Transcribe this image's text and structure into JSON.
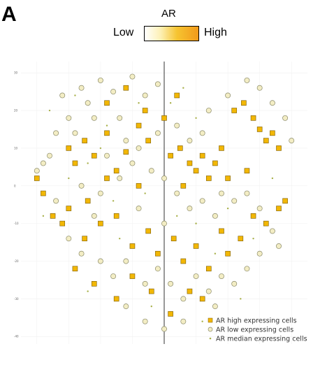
{
  "panel_label": "A",
  "colorbar": {
    "title": "AR",
    "low_label": "Low",
    "high_label": "High",
    "colors": [
      "#ffffff",
      "#fdf0b4",
      "#f6c431",
      "#f29a1a"
    ]
  },
  "chart_data": {
    "type": "scatter",
    "xlim": [
      -45,
      45
    ],
    "ylim": [
      -42,
      33
    ],
    "grid": true,
    "y_ticks": [
      "30",
      "20",
      "10",
      "0",
      "-10",
      "-20",
      "-30",
      "-40"
    ],
    "y_tick_values": [
      30,
      20,
      10,
      0,
      -10,
      -20,
      -30,
      -40
    ],
    "vertical_reference_line_x": 0,
    "legend_position": "bottom-right",
    "series": [
      {
        "name": "AR high expressing cells",
        "marker": "square",
        "color": "#f2b705",
        "edge": "#7a5a00",
        "points": [
          [
            -30,
            10
          ],
          [
            -28,
            6
          ],
          [
            -25,
            12
          ],
          [
            -22,
            8
          ],
          [
            -18,
            14
          ],
          [
            -15,
            4
          ],
          [
            -12,
            9
          ],
          [
            -8,
            16
          ],
          [
            -5,
            12
          ],
          [
            2,
            8
          ],
          [
            5,
            10
          ],
          [
            8,
            6
          ],
          [
            10,
            4
          ],
          [
            12,
            8
          ],
          [
            14,
            2
          ],
          [
            16,
            6
          ],
          [
            18,
            10
          ],
          [
            22,
            20
          ],
          [
            25,
            22
          ],
          [
            28,
            18
          ],
          [
            30,
            15
          ],
          [
            32,
            12
          ],
          [
            34,
            14
          ],
          [
            36,
            10
          ],
          [
            -40,
            2
          ],
          [
            -38,
            -2
          ],
          [
            -35,
            -8
          ],
          [
            -32,
            -10
          ],
          [
            -30,
            -6
          ],
          [
            -25,
            -14
          ],
          [
            -20,
            -10
          ],
          [
            -15,
            -8
          ],
          [
            -10,
            -16
          ],
          [
            -5,
            -12
          ],
          [
            -2,
            -18
          ],
          [
            3,
            -14
          ],
          [
            6,
            -20
          ],
          [
            10,
            -16
          ],
          [
            14,
            -22
          ],
          [
            18,
            -12
          ],
          [
            20,
            -18
          ],
          [
            24,
            -14
          ],
          [
            28,
            -8
          ],
          [
            32,
            -10
          ],
          [
            36,
            -6
          ],
          [
            38,
            -4
          ],
          [
            -28,
            -22
          ],
          [
            -22,
            -26
          ],
          [
            -15,
            -30
          ],
          [
            -10,
            -24
          ],
          [
            -4,
            -28
          ],
          [
            2,
            -34
          ],
          [
            8,
            -28
          ],
          [
            12,
            -30
          ],
          [
            -18,
            22
          ],
          [
            -12,
            26
          ],
          [
            -6,
            20
          ],
          [
            0,
            18
          ],
          [
            4,
            24
          ],
          [
            -24,
            -4
          ],
          [
            -18,
            2
          ],
          [
            -8,
            0
          ],
          [
            6,
            0
          ],
          [
            20,
            2
          ],
          [
            26,
            4
          ]
        ]
      },
      {
        "name": "AR low expressing cells",
        "marker": "circle",
        "color": "#f3edc4",
        "edge": "#8a8a6a",
        "points": [
          [
            -20,
            28
          ],
          [
            -16,
            25
          ],
          [
            -10,
            29
          ],
          [
            -6,
            24
          ],
          [
            -2,
            27
          ],
          [
            -24,
            22
          ],
          [
            -30,
            18
          ],
          [
            -34,
            14
          ],
          [
            -36,
            8
          ],
          [
            -40,
            4
          ],
          [
            -26,
            0
          ],
          [
            -20,
            -2
          ],
          [
            -14,
            2
          ],
          [
            -10,
            6
          ],
          [
            -4,
            4
          ],
          [
            0,
            2
          ],
          [
            4,
            -2
          ],
          [
            8,
            -6
          ],
          [
            12,
            -4
          ],
          [
            16,
            -8
          ],
          [
            22,
            -4
          ],
          [
            26,
            -2
          ],
          [
            30,
            -6
          ],
          [
            34,
            -12
          ],
          [
            36,
            -16
          ],
          [
            30,
            -18
          ],
          [
            26,
            -22
          ],
          [
            22,
            -26
          ],
          [
            18,
            -24
          ],
          [
            14,
            -28
          ],
          [
            10,
            -24
          ],
          [
            6,
            -30
          ],
          [
            2,
            -26
          ],
          [
            -2,
            -22
          ],
          [
            -6,
            -26
          ],
          [
            -12,
            -20
          ],
          [
            -16,
            -24
          ],
          [
            -20,
            -20
          ],
          [
            -26,
            -18
          ],
          [
            -30,
            -14
          ],
          [
            -34,
            -4
          ],
          [
            -38,
            6
          ],
          [
            -28,
            14
          ],
          [
            -22,
            18
          ],
          [
            -14,
            18
          ],
          [
            -8,
            10
          ],
          [
            -2,
            14
          ],
          [
            12,
            14
          ],
          [
            14,
            20
          ],
          [
            20,
            24
          ],
          [
            26,
            28
          ],
          [
            30,
            26
          ],
          [
            34,
            22
          ],
          [
            38,
            18
          ],
          [
            40,
            12
          ],
          [
            -32,
            24
          ],
          [
            -26,
            26
          ],
          [
            -12,
            12
          ],
          [
            4,
            16
          ],
          [
            8,
            12
          ],
          [
            -18,
            8
          ],
          [
            -22,
            -8
          ],
          [
            -8,
            -6
          ],
          [
            0,
            -10
          ],
          [
            18,
            -2
          ],
          [
            -12,
            -32
          ],
          [
            -6,
            -36
          ],
          [
            0,
            -38
          ],
          [
            6,
            -36
          ],
          [
            16,
            -32
          ]
        ]
      },
      {
        "name": "AR median expressing cells",
        "marker": "dot",
        "color": "#a8b04a",
        "points": [
          [
            -36,
            20
          ],
          [
            -28,
            24
          ],
          [
            -18,
            16
          ],
          [
            -8,
            22
          ],
          [
            2,
            22
          ],
          [
            10,
            18
          ],
          [
            -30,
            2
          ],
          [
            -24,
            6
          ],
          [
            -16,
            -4
          ],
          [
            -6,
            -2
          ],
          [
            10,
            -10
          ],
          [
            20,
            -6
          ],
          [
            28,
            -14
          ],
          [
            -24,
            -28
          ],
          [
            -14,
            -14
          ],
          [
            4,
            -8
          ],
          [
            16,
            -18
          ],
          [
            24,
            -30
          ],
          [
            -38,
            -8
          ],
          [
            34,
            2
          ],
          [
            -4,
            -32
          ],
          [
            12,
            -36
          ],
          [
            -20,
            10
          ],
          [
            6,
            26
          ]
        ]
      }
    ]
  }
}
